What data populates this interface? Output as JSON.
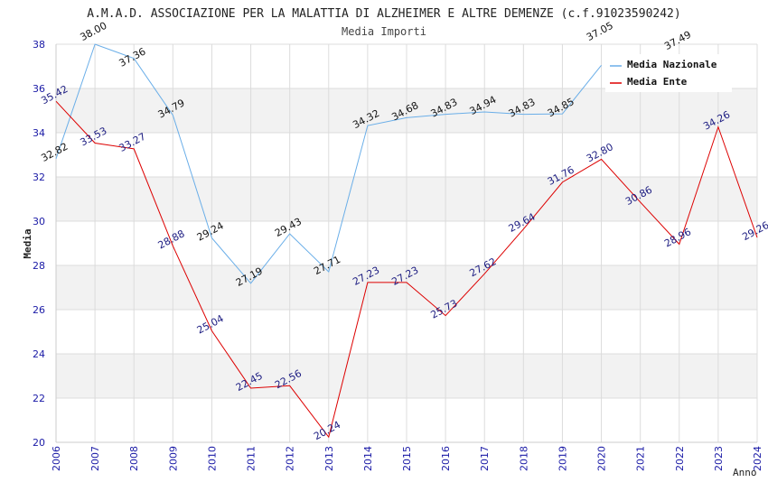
{
  "chart_data": {
    "type": "line",
    "title": "A.M.A.D. ASSOCIAZIONE PER LA MALATTIA DI ALZHEIMER E ALTRE DEMENZE (c.f.91023590242)",
    "subtitle": "Media Importi",
    "xlabel": "Anno",
    "ylabel": "Media",
    "ylim": [
      20,
      38
    ],
    "yticks": [
      "20",
      "22",
      "24",
      "26",
      "28",
      "30",
      "32",
      "34",
      "36",
      "38"
    ],
    "x": [
      "2006",
      "2007",
      "2008",
      "2009",
      "2010",
      "2011",
      "2012",
      "2013",
      "2014",
      "2015",
      "2016",
      "2017",
      "2018",
      "2019",
      "2020",
      "2021",
      "2022",
      "2023",
      "2024"
    ],
    "series": [
      {
        "name": "Media Nazionale",
        "color": "#6aaee8",
        "values": [
          32.82,
          38.0,
          37.36,
          34.79,
          29.24,
          27.19,
          29.43,
          27.71,
          34.32,
          34.68,
          34.83,
          34.94,
          34.83,
          34.85,
          37.05,
          null,
          37.49,
          null,
          null
        ],
        "labels": [
          "32.82",
          "38.00",
          "37.36",
          "34.79",
          "29.24",
          "27.19",
          "29.43",
          "27.71",
          "34.32",
          "34.68",
          "34.83",
          "34.94",
          "34.83",
          "34.85",
          "37.05",
          "",
          "37.49",
          "",
          ""
        ]
      },
      {
        "name": "Media Ente",
        "color": "#dd0000",
        "values": [
          35.42,
          33.53,
          33.27,
          28.88,
          25.04,
          22.45,
          22.56,
          20.24,
          27.23,
          27.23,
          25.73,
          27.62,
          29.64,
          31.76,
          32.8,
          30.86,
          28.96,
          34.26,
          29.26
        ],
        "labels": [
          "35.42",
          "33.53",
          "33.27",
          "28.88",
          "25.04",
          "22.45",
          "22.56",
          "20.24",
          "27.23",
          "27.23",
          "25.73",
          "27.62",
          "29.64",
          "31.76",
          "32.80",
          "30.86",
          "28.96",
          "34.26",
          "29.26"
        ]
      }
    ],
    "grid": true,
    "band_colors": [
      "#ffffff",
      "#f2f2f2"
    ],
    "legend_position": "top-right"
  }
}
